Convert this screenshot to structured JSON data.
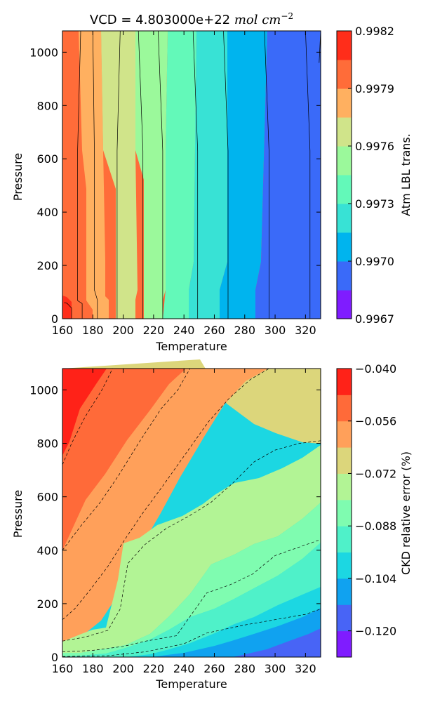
{
  "chart_data": [
    {
      "type": "contour",
      "title_prefix": "VCD = 4.803000e+22 ",
      "title_math": "mol cm",
      "title_exp": "−2",
      "xlabel": "Temperature",
      "ylabel": "Pressure",
      "xlim": [
        160,
        330
      ],
      "ylim": [
        0,
        1080
      ],
      "xticks": [
        "160",
        "180",
        "200",
        "220",
        "240",
        "260",
        "280",
        "300",
        "320"
      ],
      "yticks": [
        "0",
        "200",
        "400",
        "600",
        "800",
        "1000"
      ],
      "line_style": "solid",
      "colorbar": {
        "label": "Atm LBL trans.",
        "range": [
          0.9967,
          0.9982
        ],
        "ticks": [
          "0.9967",
          "0.9970",
          "0.9973",
          "0.9976",
          "0.9979",
          "0.9982"
        ],
        "colors": [
          "#7f1cff",
          "#3a6af9",
          "#00b4ee",
          "#38e2d5",
          "#63f9b9",
          "#9bf99b",
          "#d0e48a",
          "#ffb060",
          "#ff6c39",
          "#ff2d1a"
        ]
      },
      "contours": [
        [
          [
            166,
            0
          ],
          [
            166,
            40
          ],
          [
            163,
            58
          ],
          [
            161,
            60
          ]
        ],
        [
          [
            173,
            0
          ],
          [
            173,
            57
          ],
          [
            170,
            68
          ],
          [
            170,
            630
          ],
          [
            172,
            1080
          ]
        ],
        [
          [
            183,
            0
          ],
          [
            183,
            70
          ],
          [
            181,
            108
          ],
          [
            181,
            630
          ],
          [
            180,
            1080
          ]
        ],
        [
          [
            196,
            0
          ],
          [
            196,
            630
          ],
          [
            198,
            1080
          ]
        ],
        [
          [
            213,
            0
          ],
          [
            213,
            630
          ],
          [
            210,
            1080
          ]
        ],
        [
          [
            226,
            0
          ],
          [
            226,
            630
          ],
          [
            223,
            1080
          ]
        ],
        [
          [
            249,
            0
          ],
          [
            249,
            630
          ],
          [
            246,
            1080
          ]
        ],
        [
          [
            269,
            0
          ],
          [
            269,
            630
          ],
          [
            266,
            1080
          ]
        ],
        [
          [
            296,
            0
          ],
          [
            296,
            630
          ],
          [
            293,
            1080
          ]
        ],
        [
          [
            323,
            0
          ],
          [
            323,
            630
          ],
          [
            320,
            1080
          ]
        ],
        [
          [
            329,
            960
          ],
          [
            330,
            1080
          ]
        ]
      ]
    },
    {
      "type": "contour",
      "xlabel": "Temperature",
      "ylabel": "Pressure",
      "xlim": [
        160,
        330
      ],
      "ylim": [
        0,
        1080
      ],
      "xticks": [
        "160",
        "180",
        "200",
        "220",
        "240",
        "260",
        "280",
        "300",
        "320"
      ],
      "yticks": [
        "0",
        "200",
        "400",
        "600",
        "800",
        "1000"
      ],
      "line_style": "dashed",
      "colorbar": {
        "label": "CKD relative error (%)",
        "range": [
          -0.128,
          -0.04
        ],
        "ticks": [
          "−0.040",
          "−0.056",
          "−0.072",
          "−0.088",
          "−0.104",
          "−0.120"
        ],
        "tick_values": [
          -0.04,
          -0.056,
          -0.072,
          -0.088,
          -0.104,
          -0.12
        ],
        "colors": [
          "#7f1cff",
          "#4864f6",
          "#10a2f0",
          "#1cd7e2",
          "#4ff1c9",
          "#7ffcb0",
          "#b2f495",
          "#dcd67b",
          "#ffa05a",
          "#ff6a39",
          "#ff2218"
        ]
      },
      "contours": [
        [
          [
            160,
            720
          ],
          [
            166,
            800
          ],
          [
            175,
            900
          ],
          [
            186,
            1000
          ],
          [
            193,
            1080
          ]
        ],
        [
          [
            160,
            400
          ],
          [
            172,
            490
          ],
          [
            185,
            580
          ],
          [
            197,
            680
          ],
          [
            210,
            800
          ],
          [
            225,
            930
          ],
          [
            236,
            1000
          ],
          [
            244,
            1080
          ]
        ],
        [
          [
            160,
            140
          ],
          [
            168,
            180
          ],
          [
            178,
            250
          ],
          [
            190,
            340
          ],
          [
            201,
            440
          ],
          [
            213,
            540
          ],
          [
            226,
            640
          ],
          [
            241,
            760
          ],
          [
            256,
            880
          ],
          [
            270,
            970
          ],
          [
            284,
            1040
          ],
          [
            296,
            1080
          ]
        ],
        [
          [
            160,
            60
          ],
          [
            175,
            75
          ],
          [
            190,
            100
          ],
          [
            198,
            180
          ],
          [
            203,
            350
          ],
          [
            214,
            420
          ],
          [
            228,
            480
          ],
          [
            244,
            530
          ],
          [
            258,
            580
          ],
          [
            272,
            650
          ],
          [
            286,
            730
          ],
          [
            300,
            775
          ],
          [
            316,
            800
          ],
          [
            330,
            810
          ]
        ],
        [
          [
            160,
            20
          ],
          [
            180,
            25
          ],
          [
            200,
            40
          ],
          [
            215,
            60
          ],
          [
            235,
            80
          ],
          [
            245,
            160
          ],
          [
            255,
            240
          ],
          [
            270,
            270
          ],
          [
            285,
            310
          ],
          [
            300,
            380
          ],
          [
            315,
            410
          ],
          [
            330,
            440
          ]
        ],
        [
          [
            160,
            2
          ],
          [
            190,
            5
          ],
          [
            215,
            20
          ],
          [
            240,
            50
          ],
          [
            255,
            90
          ],
          [
            280,
            120
          ],
          [
            300,
            140
          ],
          [
            320,
            160
          ],
          [
            330,
            180
          ]
        ]
      ]
    }
  ]
}
